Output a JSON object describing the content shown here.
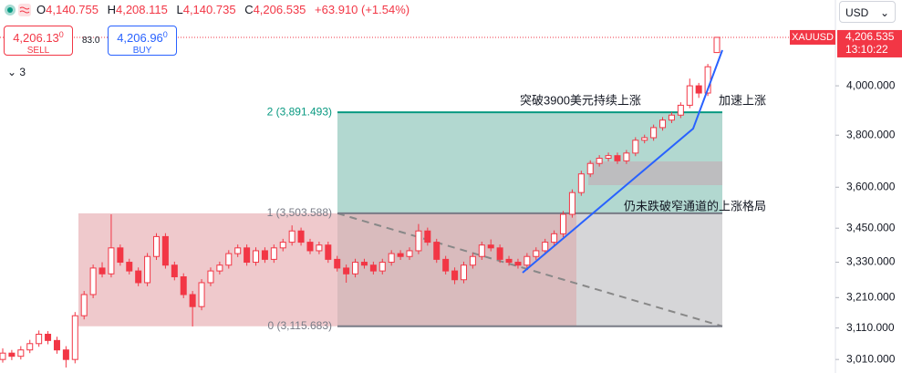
{
  "header": {
    "o_label": "O",
    "open": "4,140.755",
    "h_label": "H",
    "high": "4,208.115",
    "l_label": "L",
    "low": "4,140.735",
    "c_label": "C",
    "close": "4,206.535",
    "change": "+63.910 (+1.54%)"
  },
  "trade": {
    "sell_price": "4,206.13",
    "sell_sup": "0",
    "sell": "SELL",
    "spread": "83.0",
    "buy_price": "4,206.96",
    "buy_sup": "0",
    "buy": "BUY"
  },
  "indicators_count": "3",
  "currency": "USD",
  "chart_data": {
    "type": "candlestick",
    "log_scale": true,
    "ylim": [
      2968,
      4373
    ],
    "yticks": [
      {
        "value": 4000,
        "label": "4,000.000"
      },
      {
        "value": 3800,
        "label": "3,800.000"
      },
      {
        "value": 3600,
        "label": "3,600.000"
      },
      {
        "value": 3450,
        "label": "3,450.000"
      },
      {
        "value": 3330,
        "label": "3,330.000"
      },
      {
        "value": 3210,
        "label": "3,210.000"
      },
      {
        "value": 3110,
        "label": "3,110.000"
      },
      {
        "value": 3010,
        "label": "3,010.000"
      }
    ],
    "up_color": "#f23645",
    "down_color": "#f23645",
    "symbol": "XAUUSD",
    "last_price": {
      "value": 4206.535,
      "label": "4,206.535"
    },
    "countdown": "13:10:22",
    "fib_levels": [
      {
        "value": 3891.493,
        "label": "2 (3,891.493)",
        "color": "#089981"
      },
      {
        "value": 3503.588,
        "label": "1 (3,503.588)",
        "color": "#787b86"
      },
      {
        "value": 3115.683,
        "label": "0 (3,115.683)",
        "color": "#787b86"
      }
    ],
    "annotations": [
      "突破3900美元持续上涨",
      "加速上涨",
      "仍未跌破窄通道的上涨格局"
    ],
    "ohlc": [
      [
        3010,
        3045,
        3000,
        3030
      ],
      [
        3030,
        3040,
        3008,
        3020
      ],
      [
        3020,
        3052,
        3010,
        3040
      ],
      [
        3040,
        3072,
        3030,
        3060
      ],
      [
        3060,
        3102,
        3050,
        3090
      ],
      [
        3090,
        3100,
        3058,
        3070
      ],
      [
        3070,
        3082,
        3028,
        3040
      ],
      [
        3040,
        3052,
        2985,
        3010
      ],
      [
        3010,
        3162,
        2998,
        3150
      ],
      [
        3150,
        3232,
        3138,
        3220
      ],
      [
        3220,
        3322,
        3208,
        3310
      ],
      [
        3310,
        3330,
        3278,
        3290
      ],
      [
        3290,
        3500,
        3278,
        3380
      ],
      [
        3380,
        3392,
        3318,
        3330
      ],
      [
        3330,
        3342,
        3288,
        3300
      ],
      [
        3300,
        3312,
        3248,
        3260
      ],
      [
        3260,
        3362,
        3248,
        3350
      ],
      [
        3350,
        3432,
        3338,
        3420
      ],
      [
        3420,
        3432,
        3308,
        3320
      ],
      [
        3320,
        3332,
        3268,
        3280
      ],
      [
        3280,
        3292,
        3208,
        3220
      ],
      [
        3220,
        3232,
        3115,
        3180
      ],
      [
        3180,
        3272,
        3168,
        3260
      ],
      [
        3260,
        3312,
        3248,
        3300
      ],
      [
        3300,
        3332,
        3288,
        3320
      ],
      [
        3320,
        3372,
        3308,
        3360
      ],
      [
        3360,
        3392,
        3348,
        3380
      ],
      [
        3380,
        3392,
        3318,
        3330
      ],
      [
        3330,
        3382,
        3318,
        3370
      ],
      [
        3370,
        3382,
        3328,
        3340
      ],
      [
        3340,
        3392,
        3328,
        3380
      ],
      [
        3380,
        3412,
        3368,
        3400
      ],
      [
        3400,
        3460,
        3388,
        3440
      ],
      [
        3440,
        3452,
        3388,
        3400
      ],
      [
        3400,
        3412,
        3358,
        3370
      ],
      [
        3370,
        3402,
        3358,
        3390
      ],
      [
        3390,
        3402,
        3328,
        3340
      ],
      [
        3340,
        3352,
        3298,
        3310
      ],
      [
        3310,
        3322,
        3260,
        3290
      ],
      [
        3290,
        3342,
        3278,
        3330
      ],
      [
        3330,
        3342,
        3308,
        3320
      ],
      [
        3320,
        3332,
        3288,
        3300
      ],
      [
        3300,
        3342,
        3288,
        3330
      ],
      [
        3330,
        3372,
        3318,
        3360
      ],
      [
        3360,
        3372,
        3338,
        3350
      ],
      [
        3350,
        3382,
        3338,
        3370
      ],
      [
        3370,
        3465,
        3358,
        3440
      ],
      [
        3440,
        3452,
        3388,
        3400
      ],
      [
        3400,
        3412,
        3328,
        3340
      ],
      [
        3340,
        3352,
        3288,
        3300
      ],
      [
        3300,
        3312,
        3255,
        3270
      ],
      [
        3270,
        3332,
        3258,
        3320
      ],
      [
        3320,
        3362,
        3308,
        3350
      ],
      [
        3350,
        3402,
        3338,
        3390
      ],
      [
        3390,
        3410,
        3368,
        3380
      ],
      [
        3380,
        3392,
        3328,
        3340
      ],
      [
        3340,
        3352,
        3318,
        3330
      ],
      [
        3330,
        3342,
        3308,
        3320
      ],
      [
        3320,
        3362,
        3308,
        3350
      ],
      [
        3350,
        3382,
        3338,
        3370
      ],
      [
        3370,
        3412,
        3358,
        3400
      ],
      [
        3400,
        3442,
        3388,
        3430
      ],
      [
        3430,
        3512,
        3418,
        3500
      ],
      [
        3500,
        3592,
        3488,
        3580
      ],
      [
        3580,
        3662,
        3568,
        3650
      ],
      [
        3650,
        3702,
        3638,
        3690
      ],
      [
        3690,
        3722,
        3678,
        3710
      ],
      [
        3710,
        3732,
        3698,
        3720
      ],
      [
        3720,
        3732,
        3688,
        3700
      ],
      [
        3700,
        3742,
        3688,
        3730
      ],
      [
        3730,
        3792,
        3718,
        3780
      ],
      [
        3780,
        3802,
        3768,
        3790
      ],
      [
        3790,
        3842,
        3778,
        3830
      ],
      [
        3830,
        3872,
        3818,
        3860
      ],
      [
        3860,
        3892,
        3848,
        3880
      ],
      [
        3880,
        3932,
        3868,
        3920
      ],
      [
        3920,
        4030,
        3908,
        4000
      ],
      [
        4000,
        4012,
        3950,
        3970
      ],
      [
        3970,
        4092,
        3958,
        4080
      ],
      [
        4140.755,
        4208.115,
        4140.735,
        4206.535
      ]
    ]
  }
}
